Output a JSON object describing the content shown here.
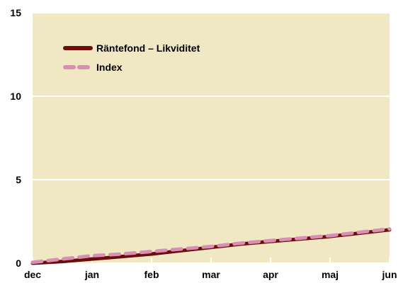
{
  "chart_data": {
    "type": "line",
    "title": "",
    "xlabel": "",
    "ylabel": "",
    "categories": [
      "dec",
      "jan",
      "feb",
      "mar",
      "apr",
      "maj",
      "jun"
    ],
    "ylim": [
      0,
      15
    ],
    "yticks": [
      "0",
      "5",
      "10",
      "15"
    ],
    "grid": true,
    "legend_position": "top-left",
    "background_color": "#efe8c3",
    "series": [
      {
        "name": "Räntefond – Likviditet",
        "color": "#6b0d0d",
        "style": "solid",
        "x": [
          0,
          0.5,
          1,
          1.5,
          2,
          2.5,
          3,
          3.5,
          4,
          4.5,
          5,
          5.5,
          6
        ],
        "values": [
          0.0,
          0.1,
          0.25,
          0.4,
          0.55,
          0.75,
          0.95,
          1.15,
          1.3,
          1.45,
          1.6,
          1.8,
          2.0
        ]
      },
      {
        "name": "Index",
        "color": "#d98fb4",
        "style": "dashed",
        "x": [
          0,
          0.5,
          1,
          1.5,
          2,
          2.5,
          3,
          3.5,
          4,
          4.5,
          5,
          5.5,
          6
        ],
        "values": [
          0.05,
          0.25,
          0.45,
          0.55,
          0.7,
          0.85,
          1.0,
          1.2,
          1.35,
          1.5,
          1.65,
          1.85,
          2.05
        ]
      }
    ]
  }
}
